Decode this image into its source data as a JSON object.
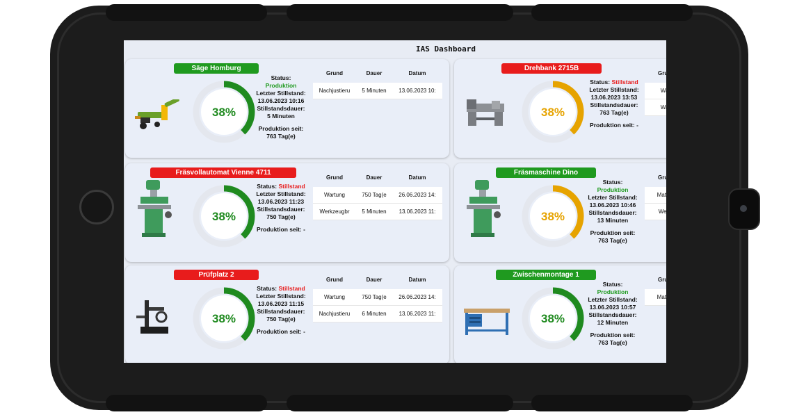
{
  "dashboard": {
    "title": "IAS Dashboard"
  },
  "labels": {
    "status": "Status:",
    "last_stop": "Letzter Stillstand:",
    "stop_duration": "Stillstandsdauer:",
    "production_since": "Produktion seit:",
    "col_reason": "Grund",
    "col_duration": "Dauer",
    "col_date": "Datum"
  },
  "colors": {
    "ok": "#1f9a1f",
    "down": "#e81c1c",
    "gauge_ok": "#1f8a1f",
    "gauge_warn": "#e6a300"
  },
  "machines": [
    {
      "name": "Säge Homburg",
      "state": "ok",
      "status": "Produktion",
      "last_stop": "13.06.2023 10:16",
      "stop_duration": "5 Minuten",
      "production_since": "763 Tag(e)",
      "gauge_label": "38%",
      "gauge_value": 0.38,
      "gauge_color": "green",
      "icon": "log-splitter-icon",
      "log": [
        {
          "reason": "Nachjustieru",
          "duration": "5 Minuten",
          "date": "13.06.2023 10:"
        }
      ]
    },
    {
      "name": "Drehbank 2715B",
      "state": "down",
      "status": "Stillstand",
      "last_stop": "13.06.2023 13:53",
      "stop_duration": "763 Tag(e)",
      "production_since": "-",
      "gauge_label": "38%",
      "gauge_value": 0.38,
      "gauge_color": "orange",
      "icon": "lathe-icon",
      "log": [
        {
          "reason": "Wart",
          "duration": "",
          "date": ""
        },
        {
          "reason": "Wart",
          "duration": "",
          "date": ""
        }
      ]
    },
    {
      "name": "Fräsvollautomat Vienne 4711",
      "state": "down",
      "status": "Stillstand",
      "last_stop": "13.06.2023 11:23",
      "stop_duration": "750 Tag(e)",
      "production_since": "-",
      "gauge_label": "38%",
      "gauge_value": 0.38,
      "gauge_color": "green",
      "icon": "milling-machine-icon",
      "log": [
        {
          "reason": "Wartung",
          "duration": "750 Tag(e",
          "date": "26.06.2023 14:"
        },
        {
          "reason": "Werkzeugbr",
          "duration": "5 Minuten",
          "date": "13.06.2023 11:"
        }
      ]
    },
    {
      "name": "Fräsmaschine Dino",
      "state": "ok",
      "status": "Produktion",
      "last_stop": "13.06.2023 10:46",
      "stop_duration": "13 Minuten",
      "production_since": "763 Tag(e)",
      "gauge_label": "38%",
      "gauge_value": 0.38,
      "gauge_color": "orange",
      "icon": "milling-machine-icon",
      "log": [
        {
          "reason": "Materia",
          "duration": "",
          "date": ""
        },
        {
          "reason": "Werkz",
          "duration": "",
          "date": ""
        }
      ]
    },
    {
      "name": "Prüfplatz 2",
      "state": "down",
      "status": "Stillstand",
      "last_stop": "13.06.2023 11:15",
      "stop_duration": "750 Tag(e)",
      "production_since": "-",
      "gauge_label": "38%",
      "gauge_value": 0.38,
      "gauge_color": "green",
      "icon": "test-stand-icon",
      "log": [
        {
          "reason": "Wartung",
          "duration": "750 Tag(e",
          "date": "26.06.2023 14:"
        },
        {
          "reason": "Nachjustieru",
          "duration": "6 Minuten",
          "date": "13.06.2023 11:"
        }
      ]
    },
    {
      "name": "Zwischenmontage 1",
      "state": "ok",
      "status": "Produktion",
      "last_stop": "13.06.2023 10:57",
      "stop_duration": "12 Minuten",
      "production_since": "763 Tag(e)",
      "gauge_label": "38%",
      "gauge_value": 0.38,
      "gauge_color": "green",
      "icon": "workbench-icon",
      "log": [
        {
          "reason": "Materia",
          "duration": "",
          "date": ""
        }
      ]
    }
  ]
}
